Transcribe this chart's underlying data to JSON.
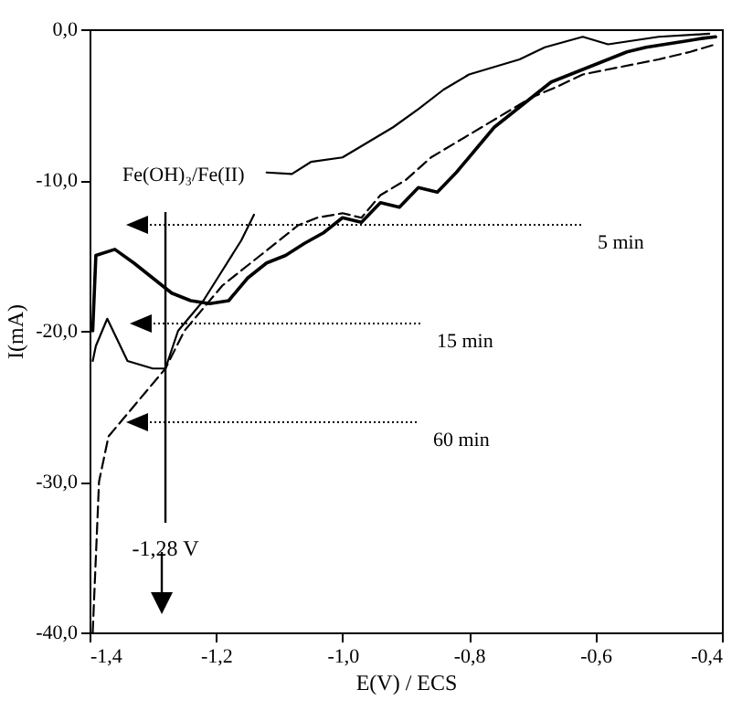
{
  "chart_data": {
    "type": "line",
    "xlabel": "E(V) / ECS",
    "ylabel": "I(mA)",
    "xlim": [
      -1.4,
      -0.4
    ],
    "ylim": [
      -40,
      0
    ],
    "xticks": [
      {
        "value": -1.4,
        "label": "-1,4"
      },
      {
        "value": -1.2,
        "label": "-1,2"
      },
      {
        "value": -1.0,
        "label": "-1,0"
      },
      {
        "value": -0.8,
        "label": "-0,8"
      },
      {
        "value": -0.6,
        "label": "-0,6"
      },
      {
        "value": -0.4,
        "label": "-0,4"
      }
    ],
    "yticks": [
      {
        "value": -40,
        "label": "-40,0"
      },
      {
        "value": -30,
        "label": "-30,0"
      },
      {
        "value": -20,
        "label": "-20,0"
      },
      {
        "value": -10,
        "label": "-10,0"
      },
      {
        "value": 0,
        "label": "0,0"
      }
    ],
    "grid": false,
    "marker": "none",
    "series": [
      {
        "color": "#000000",
        "line_style": "solid",
        "x": [
          -1.395,
          -1.39,
          -1.36,
          -1.33,
          -1.3,
          -1.27,
          -1.24,
          -1.21,
          -1.18,
          -1.15,
          -1.12,
          -1.09,
          -1.06,
          -1.03,
          -1.0,
          -0.97,
          -0.94,
          -0.91,
          -0.88,
          -0.85,
          -0.82,
          -0.79,
          -0.76,
          -0.73,
          -0.7,
          -0.67,
          -0.64,
          -0.61,
          -0.58,
          -0.55,
          -0.52,
          -0.49,
          -0.46,
          -0.43,
          -0.41
        ],
        "values": [
          -20,
          -15,
          -14.6,
          -15.5,
          -16.5,
          -17.5,
          -18,
          -18.2,
          -18,
          -16.5,
          -15.5,
          -15,
          -14.2,
          -13.5,
          -12.5,
          -12.8,
          -11.5,
          -11.8,
          -10.5,
          -10.8,
          -9.5,
          -8,
          -6.5,
          -5.5,
          -4.5,
          -3.5,
          -3,
          -2.5,
          -2,
          -1.5,
          -1.2,
          -1,
          -0.8,
          -0.6,
          -0.5
        ]
      },
      {
        "color": "#000000",
        "line_style": "solid",
        "x": [
          -1.395,
          -1.39,
          -1.372,
          -1.34,
          -1.3,
          -1.28,
          -1.26,
          -1.22,
          -1.19,
          -1.16,
          -1.14,
          -1.13,
          -1.12,
          -1.08,
          -1.05,
          -1.0,
          -0.96,
          -0.92,
          -0.88,
          -0.84,
          -0.8,
          -0.76,
          -0.72,
          -0.68,
          -0.62,
          -0.58,
          -0.5,
          -0.42
        ],
        "values": [
          -22,
          -21,
          -19.2,
          -22,
          -22.5,
          -22.5,
          -20,
          -18,
          -16,
          -14,
          -12.3,
          null,
          -9.5,
          -9.6,
          -8.8,
          -8.5,
          -7.5,
          -6.5,
          -5.3,
          -4,
          -3,
          -2.5,
          -2,
          -1.2,
          -0.5,
          -1,
          -0.5,
          -0.3
        ]
      },
      {
        "color": "#000000",
        "line_style": "dashed",
        "x": [
          -1.395,
          -1.385,
          -1.37,
          -1.34,
          -1.31,
          -1.28,
          -1.25,
          -1.22,
          -1.19,
          -1.16,
          -1.13,
          -1.1,
          -1.07,
          -1.04,
          -1.0,
          -0.97,
          -0.94,
          -0.9,
          -0.86,
          -0.82,
          -0.78,
          -0.74,
          -0.7,
          -0.66,
          -0.62,
          -0.56,
          -0.5,
          -0.45,
          -0.41
        ],
        "values": [
          -40,
          -30,
          -27,
          -25.5,
          -24,
          -22.5,
          -20,
          -18.5,
          -17,
          -16,
          -15,
          -14,
          -13,
          -12.5,
          -12.2,
          -12.5,
          -11,
          -10,
          -8.5,
          -7.5,
          -6.5,
          -5.5,
          -4.5,
          -3.8,
          -3,
          -2.5,
          -2,
          -1.5,
          -1
        ]
      }
    ],
    "ref_lines": [
      {
        "axis": "x",
        "value": -1.28,
        "label": "-1,28 V",
        "color": "#000000"
      }
    ],
    "annotations": [
      "Fe(OH)₃/Fe(II)",
      "5 min",
      "15 min",
      "60 min"
    ]
  }
}
